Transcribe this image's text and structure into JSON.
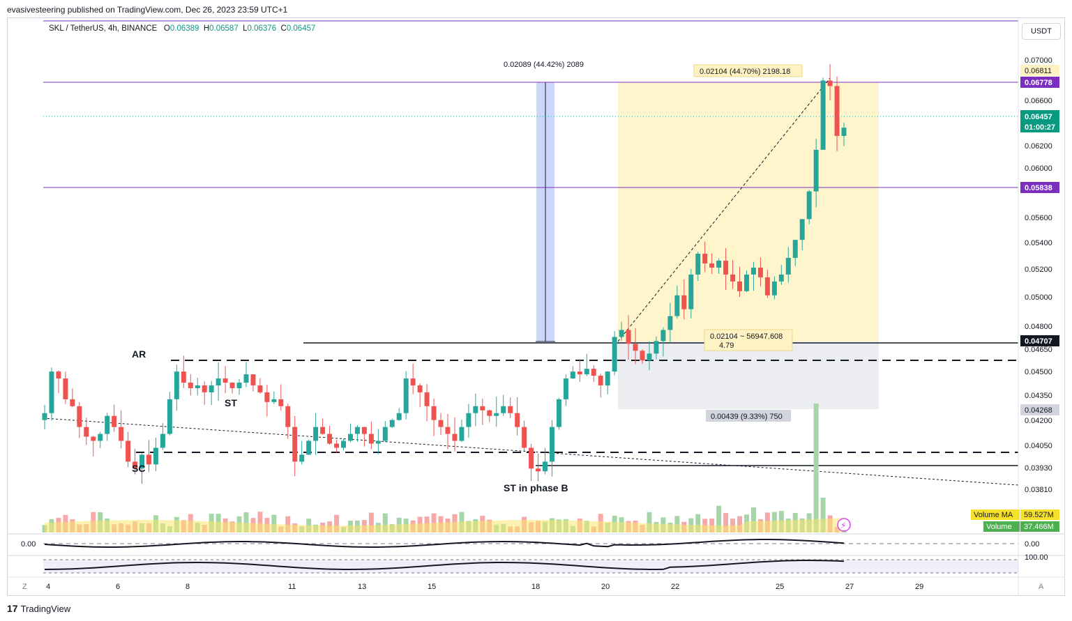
{
  "header": {
    "published": "evasivesteering published on TradingView.com, Dec 26, 2023 23:59 UTC+1"
  },
  "symbol": {
    "name": "SKL / TetherUS, 4h, BINANCE",
    "o_label": "O",
    "o": "0.06389",
    "h_label": "H",
    "h": "0.06587",
    "l_label": "L",
    "l": "0.06376",
    "c_label": "C",
    "c": "0.06457"
  },
  "currency_button": "USDT",
  "footer": {
    "logo_mark": "17",
    "logo_text": "TradingView"
  },
  "colors": {
    "up": "#26a69a",
    "down": "#ef5350",
    "purple_line": "#7b2fbf",
    "yellow_box": "#fff3c4",
    "grey_box": "#e9ebef",
    "blue_box": "#c6d3fb"
  },
  "price_axis": {
    "ticks": [
      "0.07000",
      "0.06600",
      "0.06200",
      "0.06000",
      "0.05600",
      "0.05400",
      "0.05200",
      "0.05000",
      "0.04800",
      "0.04650",
      "0.04500",
      "0.04350",
      "0.04200",
      "0.04050",
      "0.03930",
      "0.03810"
    ],
    "tags": {
      "p06811": "0.06811",
      "p06778": "0.06778",
      "last": "0.06457",
      "countdown": "01:00:27",
      "p05838": "0.05838",
      "p04707": "0.04707",
      "p04268": "0.04268"
    }
  },
  "indicator_axis": {
    "osc1": "0.00",
    "osc1_left": "0.00",
    "osc2": "100.00"
  },
  "volume_legend": {
    "ma_label": "Volume MA",
    "ma_value": "59.527M",
    "vol_label": "Volume",
    "vol_value": "37.466M"
  },
  "date_axis": [
    "4",
    "6",
    "8",
    "11",
    "13",
    "15",
    "18",
    "20",
    "22",
    "25",
    "27",
    "29"
  ],
  "bottom_corners": {
    "left": "Z",
    "right": "A"
  },
  "annotations": {
    "ar": "AR",
    "st": "ST",
    "sc": "SC",
    "st_phase_b": "ST in phase B",
    "measure_blue": "0.02089 (44.42%) 2089",
    "measure_yellow_top": "0.02104 (44.70%) 2198.18",
    "measure_yellow_mid1": "0.02104 ~ 56947.608",
    "measure_yellow_mid2": "4.79",
    "measure_grey": "0.00439 (9.33%) 750"
  },
  "chart_data": {
    "type": "candlestick",
    "timeframe": "4h",
    "ylim": [
      0.0375,
      0.0723
    ],
    "x_ticks": [
      "4",
      "6",
      "8",
      "11",
      "13",
      "15",
      "18",
      "20",
      "22",
      "25",
      "27",
      "29"
    ],
    "levels": [
      0.06778,
      0.05838,
      0.04707,
      0.0465,
      0.0402,
      0.03935
    ],
    "candles_close_path": [
      0.044,
      0.047,
      0.0465,
      0.045,
      0.0445,
      0.043,
      0.0423,
      0.042,
      0.0425,
      0.0438,
      0.043,
      0.042,
      0.0405,
      0.04,
      0.041,
      0.0403,
      0.0415,
      0.0425,
      0.045,
      0.047,
      0.0462,
      0.0458,
      0.046,
      0.0455,
      0.046,
      0.0465,
      0.0462,
      0.0458,
      0.0462,
      0.0468,
      0.046,
      0.0455,
      0.0448,
      0.045,
      0.0445,
      0.043,
      0.0405,
      0.041,
      0.042,
      0.043,
      0.0425,
      0.0418,
      0.0415,
      0.042,
      0.0425,
      0.043,
      0.0425,
      0.0418,
      0.042,
      0.043,
      0.0435,
      0.044,
      0.0465,
      0.046,
      0.0455,
      0.0445,
      0.0435,
      0.043,
      0.0425,
      0.042,
      0.043,
      0.044,
      0.0445,
      0.0442,
      0.0438,
      0.044,
      0.0445,
      0.044,
      0.043,
      0.0415,
      0.04,
      0.0398,
      0.0405,
      0.043,
      0.045,
      0.0465,
      0.047,
      0.0468,
      0.0472,
      0.0467,
      0.046,
      0.047,
      0.0495,
      0.05,
      0.049,
      0.0485,
      0.0478,
      0.0483,
      0.0492,
      0.05,
      0.051,
      0.0525,
      0.0515,
      0.054,
      0.0555,
      0.0548,
      0.0545,
      0.055,
      0.054,
      0.0535,
      0.0528,
      0.054,
      0.0545,
      0.0538,
      0.0525,
      0.0535,
      0.054,
      0.0552,
      0.0565,
      0.058,
      0.06,
      0.063,
      0.068,
      0.0676,
      0.064,
      0.0646
    ],
    "volume_ma_label": "Volume MA 59.527M",
    "volume_last": "37.466M"
  }
}
